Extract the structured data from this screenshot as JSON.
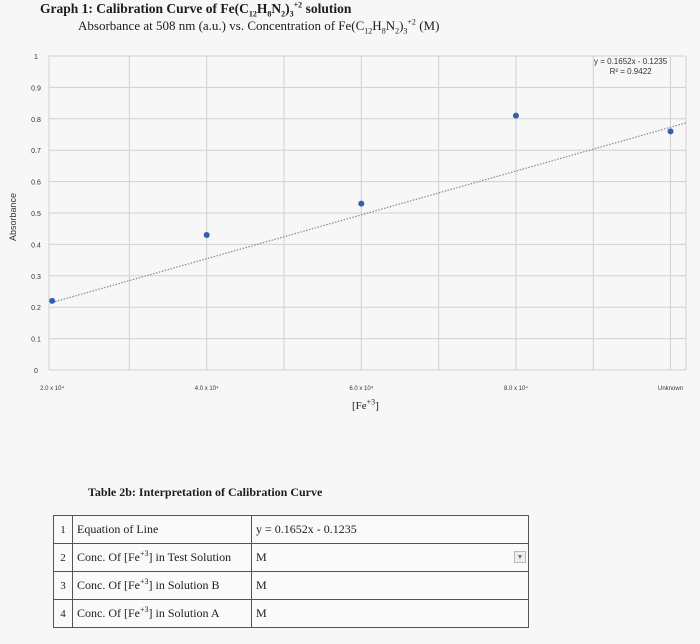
{
  "title": {
    "line1_prefix": "Graph 1: Calibration Curve of Fe(C",
    "line1_suffix": " solution",
    "line2_prefix": "Absorbance at 508 nm (a.u.) vs. Concentration of Fe(C",
    "line2_suffix": " (M)"
  },
  "chart_data": {
    "type": "scatter",
    "title": "Graph 1: Calibration Curve of Fe(C12H8N2)3+2 solution",
    "subtitle": "Absorbance at 508 nm (a.u.) vs. Concentration of Fe(C12H8N2)3+2 (M)",
    "xlabel": "[Fe+3]",
    "ylabel": "Absorbance",
    "x_tick_labels": [
      "2.0 x 10⁴",
      "4.0 x 10⁴",
      "6.0 x 10⁴",
      "8.0 x 10⁴",
      "Unknown"
    ],
    "y_tick_labels": [
      "0",
      "0.1",
      "0.2",
      "0.3",
      "0.4",
      "0.5",
      "0.6",
      "0.7",
      "0.8",
      "0.9",
      "1"
    ],
    "ylim": [
      0,
      1
    ],
    "x_positions": [
      1,
      2,
      3,
      4,
      5
    ],
    "series": [
      {
        "points": [
          {
            "x": 1,
            "y": 0.22
          },
          {
            "x": 2,
            "y": 0.43
          },
          {
            "x": 3,
            "y": 0.53
          },
          {
            "x": 4,
            "y": 0.81
          },
          {
            "x": 5,
            "y": 0.76
          }
        ],
        "color": "#3060b0"
      }
    ],
    "trendline": {
      "from": {
        "x": 1,
        "y": 0.215
      },
      "to": {
        "x": 5,
        "y": 0.78
      },
      "equation": "y = 0.1652x - 0.1235",
      "r2": "R² = 0.9422",
      "style": "dotted"
    },
    "grid": true
  },
  "table": {
    "title": "Table 2b: Interpretation of Calibration Curve",
    "rows": [
      {
        "num": "1",
        "label": "Equation of Line",
        "value": "y = 0.1652x - 0.1235"
      },
      {
        "num": "2",
        "label": "Conc. Of [Fe+3] in Test Solution",
        "value": "M"
      },
      {
        "num": "3",
        "label": "Conc. Of [Fe+3] in Solution B",
        "value": "M"
      },
      {
        "num": "4",
        "label": "Conc. Of [Fe+3] in Solution A",
        "value": "M"
      }
    ]
  },
  "colors": {
    "marker": "#3060b0",
    "gridline": "#d0d0d0",
    "trendline": "#8a8a8a"
  }
}
